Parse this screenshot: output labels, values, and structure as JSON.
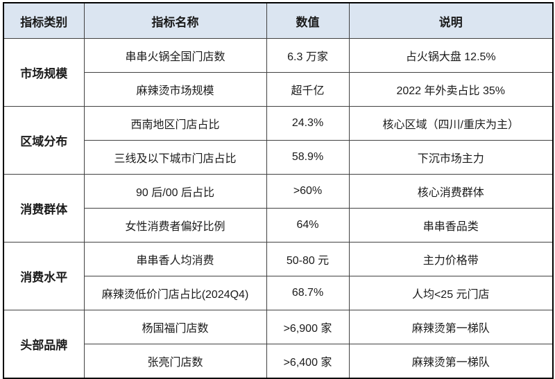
{
  "table": {
    "headers": [
      "指标类别",
      "指标名称",
      "数值",
      "说明"
    ],
    "groups": [
      {
        "category": "市场规模",
        "rows": [
          {
            "name": "串串火锅全国门店数",
            "value": "6.3 万家",
            "note": "占火锅大盘 12.5%"
          },
          {
            "name": "麻辣烫市场规模",
            "value": "超千亿",
            "note": "2022 年外卖占比 35%"
          }
        ]
      },
      {
        "category": "区域分布",
        "rows": [
          {
            "name": "西南地区门店占比",
            "value": "24.3%",
            "note": "核心区域（四川/重庆为主）"
          },
          {
            "name": "三线及以下城市门店占比",
            "value": "58.9%",
            "note": "下沉市场主力"
          }
        ]
      },
      {
        "category": "消费群体",
        "rows": [
          {
            "name": "90 后/00 后占比",
            "value": ">60%",
            "note": "核心消费群体"
          },
          {
            "name": "女性消费者偏好比例",
            "value": "64%",
            "note": "串串香品类"
          }
        ]
      },
      {
        "category": "消费水平",
        "rows": [
          {
            "name": "串串香人均消费",
            "value": "50-80 元",
            "note": "主力价格带"
          },
          {
            "name": "麻辣烫低价门店占比(2024Q4)",
            "value": "68.7%",
            "note": "人均<25 元门店"
          }
        ]
      },
      {
        "category": "头部品牌",
        "rows": [
          {
            "name": "杨国福门店数",
            "value": ">6,900 家",
            "note": "麻辣烫第一梯队"
          },
          {
            "name": "张亮门店数",
            "value": ">6,400 家",
            "note": "麻辣烫第一梯队"
          }
        ]
      }
    ],
    "colors": {
      "header_bg": "#dbe5f1",
      "outer_border": "#000000",
      "inner_border": "#404040",
      "text": "#1a1a1a"
    }
  }
}
